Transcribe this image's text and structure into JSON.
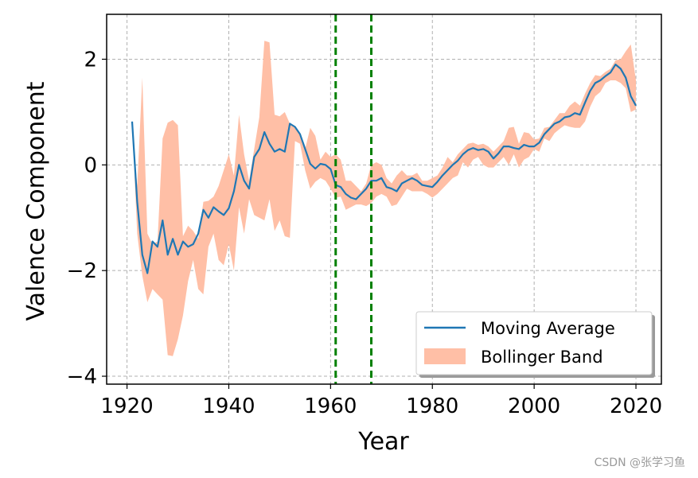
{
  "chart_data": {
    "type": "line",
    "title": "",
    "xlabel": "Year",
    "ylabel": "Valence Component",
    "xlim": [
      1916,
      2025
    ],
    "ylim": [
      -4.15,
      2.85
    ],
    "xticks": [
      1920,
      1940,
      1960,
      1980,
      2000,
      2020
    ],
    "yticks": [
      -4,
      -2,
      0,
      2
    ],
    "xtick_labels": [
      "1920",
      "1940",
      "1960",
      "1980",
      "2000",
      "2020"
    ],
    "ytick_labels": [
      "−4",
      "−2",
      "0",
      "2"
    ],
    "grid": true,
    "legend_position": "lower-right",
    "vlines": [
      1961,
      1968
    ],
    "colors": {
      "moving_average": "#1f77b4",
      "band": "#ffbfa6",
      "vline": "#008000",
      "grid": "#b0b0b0"
    },
    "series": [
      {
        "name": "Moving Average",
        "x": [
          1921,
          1922,
          1923,
          1924,
          1925,
          1926,
          1927,
          1928,
          1929,
          1930,
          1931,
          1932,
          1933,
          1934,
          1935,
          1936,
          1937,
          1938,
          1939,
          1940,
          1941,
          1942,
          1943,
          1944,
          1945,
          1946,
          1947,
          1948,
          1949,
          1950,
          1951,
          1952,
          1953,
          1954,
          1955,
          1956,
          1957,
          1958,
          1959,
          1960,
          1961,
          1962,
          1963,
          1964,
          1965,
          1966,
          1967,
          1968,
          1969,
          1970,
          1971,
          1972,
          1973,
          1974,
          1975,
          1976,
          1977,
          1978,
          1979,
          1980,
          1981,
          1982,
          1983,
          1984,
          1985,
          1986,
          1987,
          1988,
          1989,
          1990,
          1991,
          1992,
          1993,
          1994,
          1995,
          1996,
          1997,
          1998,
          1999,
          2000,
          2001,
          2002,
          2003,
          2004,
          2005,
          2006,
          2007,
          2008,
          2009,
          2010,
          2011,
          2012,
          2013,
          2014,
          2015,
          2016,
          2017,
          2018,
          2019,
          2020
        ],
        "values": [
          0.82,
          -0.7,
          -1.7,
          -2.05,
          -1.45,
          -1.55,
          -1.05,
          -1.7,
          -1.4,
          -1.7,
          -1.45,
          -1.55,
          -1.5,
          -1.3,
          -0.85,
          -1.0,
          -0.8,
          -0.88,
          -0.95,
          -0.82,
          -0.5,
          0.0,
          -0.3,
          -0.45,
          0.15,
          0.3,
          0.62,
          0.4,
          0.25,
          0.3,
          0.25,
          0.78,
          0.72,
          0.58,
          0.3,
          0.02,
          -0.07,
          0.02,
          0.0,
          -0.08,
          -0.38,
          -0.42,
          -0.55,
          -0.62,
          -0.65,
          -0.55,
          -0.45,
          -0.3,
          -0.3,
          -0.25,
          -0.42,
          -0.45,
          -0.5,
          -0.35,
          -0.3,
          -0.25,
          -0.3,
          -0.38,
          -0.4,
          -0.42,
          -0.32,
          -0.2,
          -0.1,
          0.0,
          0.08,
          0.2,
          0.28,
          0.32,
          0.28,
          0.3,
          0.25,
          0.12,
          0.22,
          0.35,
          0.35,
          0.32,
          0.3,
          0.38,
          0.35,
          0.35,
          0.42,
          0.58,
          0.68,
          0.78,
          0.82,
          0.9,
          0.92,
          0.98,
          0.95,
          1.18,
          1.4,
          1.55,
          1.6,
          1.68,
          1.75,
          1.9,
          1.82,
          1.65,
          1.3,
          1.12
        ]
      },
      {
        "name": "Bollinger Band",
        "x": [
          1921,
          1922,
          1923,
          1924,
          1925,
          1926,
          1927,
          1928,
          1929,
          1930,
          1931,
          1932,
          1933,
          1934,
          1935,
          1936,
          1937,
          1938,
          1939,
          1940,
          1941,
          1942,
          1943,
          1944,
          1945,
          1946,
          1947,
          1948,
          1949,
          1950,
          1951,
          1952,
          1953,
          1954,
          1955,
          1956,
          1957,
          1958,
          1959,
          1960,
          1961,
          1962,
          1963,
          1964,
          1965,
          1966,
          1967,
          1968,
          1969,
          1970,
          1971,
          1972,
          1973,
          1974,
          1975,
          1976,
          1977,
          1978,
          1979,
          1980,
          1981,
          1982,
          1983,
          1984,
          1985,
          1986,
          1987,
          1988,
          1989,
          1990,
          1991,
          1992,
          1993,
          1994,
          1995,
          1996,
          1997,
          1998,
          1999,
          2000,
          2001,
          2002,
          2003,
          2004,
          2005,
          2006,
          2007,
          2008,
          2009,
          2010,
          2011,
          2012,
          2013,
          2014,
          2015,
          2016,
          2017,
          2018,
          2019,
          2020
        ],
        "upper": [
          0.8,
          -0.4,
          1.65,
          -1.3,
          -1.5,
          -1.45,
          0.5,
          0.8,
          0.85,
          0.75,
          -1.35,
          -1.15,
          -1.25,
          -1.4,
          -0.7,
          -0.68,
          -0.6,
          -0.4,
          -0.1,
          0.2,
          -0.2,
          0.95,
          0.2,
          -0.3,
          0.3,
          0.9,
          2.35,
          2.32,
          0.95,
          0.92,
          1.0,
          0.78,
          0.72,
          0.58,
          0.3,
          0.7,
          0.55,
          0.1,
          0.25,
          0.15,
          0.2,
          0.1,
          -0.3,
          -0.3,
          -0.4,
          -0.5,
          -0.35,
          0.0,
          0.05,
          0.0,
          -0.25,
          -0.35,
          -0.2,
          -0.1,
          -0.2,
          -0.2,
          -0.15,
          -0.3,
          -0.3,
          -0.25,
          -0.2,
          -0.05,
          0.15,
          0.05,
          0.2,
          0.3,
          0.4,
          0.42,
          0.38,
          0.4,
          0.35,
          0.25,
          0.35,
          0.45,
          0.7,
          0.72,
          0.4,
          0.62,
          0.6,
          0.48,
          0.5,
          0.7,
          0.72,
          0.85,
          0.98,
          0.98,
          1.12,
          1.2,
          1.12,
          1.35,
          1.55,
          1.7,
          1.68,
          1.76,
          1.82,
          1.98,
          2.0,
          2.15,
          2.28,
          1.6
        ],
        "lower": [
          0.8,
          -1.3,
          -2.1,
          -2.6,
          -2.35,
          -2.45,
          -2.55,
          -3.6,
          -3.62,
          -3.3,
          -2.85,
          -2.2,
          -1.8,
          -2.35,
          -2.45,
          -1.55,
          -1.3,
          -1.8,
          -1.9,
          -1.5,
          -2.0,
          -0.8,
          -1.3,
          -0.65,
          -0.95,
          -1.0,
          -1.05,
          -0.65,
          -1.25,
          -1.05,
          -1.35,
          -1.38,
          0.45,
          0.4,
          -0.1,
          -0.45,
          -0.32,
          -0.25,
          -0.3,
          -0.45,
          -0.62,
          -0.6,
          -0.85,
          -0.8,
          -0.75,
          -0.75,
          -0.78,
          -0.72,
          -0.6,
          -0.55,
          -0.6,
          -0.78,
          -0.75,
          -0.6,
          -0.45,
          -0.5,
          -0.5,
          -0.5,
          -0.55,
          -0.62,
          -0.55,
          -0.45,
          -0.35,
          -0.25,
          -0.2,
          0.05,
          -0.05,
          0.1,
          0.15,
          0.0,
          -0.05,
          -0.05,
          0.05,
          0.15,
          0.0,
          0.2,
          -0.05,
          0.1,
          0.15,
          0.3,
          0.25,
          0.5,
          0.45,
          0.6,
          0.68,
          0.75,
          0.72,
          0.7,
          0.7,
          0.82,
          1.1,
          1.3,
          1.38,
          1.55,
          1.6,
          1.6,
          1.55,
          1.45,
          1.0,
          1.05
        ]
      }
    ]
  },
  "watermark": "CSDN @张学习鱼"
}
